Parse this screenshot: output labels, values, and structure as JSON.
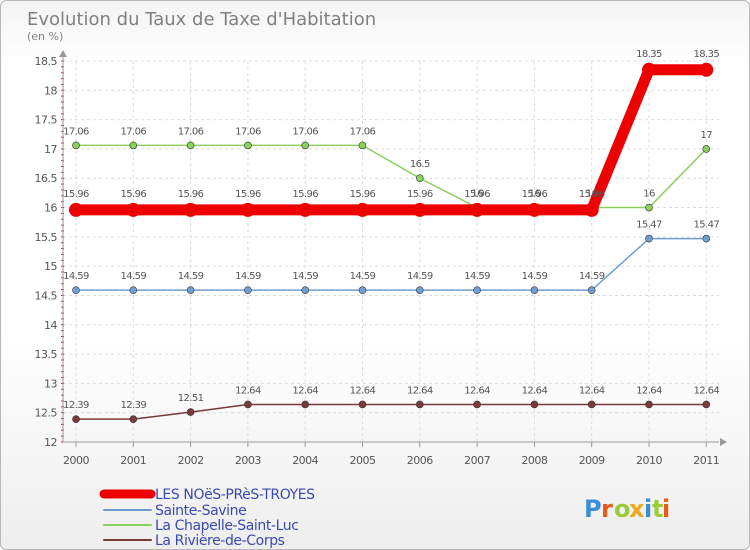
{
  "chart_data": {
    "type": "line",
    "title": "Evolution du Taux de Taxe d'Habitation",
    "subtitle": "(en %)",
    "x": [
      "2000",
      "2001",
      "2002",
      "2003",
      "2004",
      "2005",
      "2006",
      "2007",
      "2008",
      "2009",
      "2010",
      "2011"
    ],
    "ylim": [
      12,
      18.5
    ],
    "yticks": [
      "12",
      "12.5",
      "13",
      "13.5",
      "14",
      "14.5",
      "15",
      "15.5",
      "16",
      "16.5",
      "17",
      "17.5",
      "18",
      "18.5"
    ],
    "grid": true,
    "legend_position": "bottom-left",
    "series": [
      {
        "name": "LES NOëS-PRèS-TROYES",
        "color": "#ee0000",
        "values": [
          15.96,
          15.96,
          15.96,
          15.96,
          15.96,
          15.96,
          15.96,
          15.96,
          15.96,
          15.96,
          18.35,
          18.35
        ],
        "labels": [
          "15.96",
          "15.96",
          "15.96",
          "15.96",
          "15.96",
          "15.96",
          "15.96",
          "15.96",
          "15.96",
          "15.96",
          "18.35",
          "18.35"
        ]
      },
      {
        "name": "Sainte-Savine",
        "color": "#6f9fcf",
        "values": [
          14.59,
          14.59,
          14.59,
          14.59,
          14.59,
          14.59,
          14.59,
          14.59,
          14.59,
          14.59,
          15.47,
          15.47
        ],
        "labels": [
          "14.59",
          "14.59",
          "14.59",
          "14.59",
          "14.59",
          "14.59",
          "14.59",
          "14.59",
          "14.59",
          "14.59",
          "15.47",
          "15.47"
        ]
      },
      {
        "name": "La Chapelle-Saint-Luc",
        "color": "#8cd060",
        "values": [
          17.06,
          17.06,
          17.06,
          17.06,
          17.06,
          17.06,
          16.5,
          16,
          16,
          16,
          16,
          17
        ],
        "labels": [
          "17.06",
          "17.06",
          "17.06",
          "17.06",
          "17.06",
          "17.06",
          "16.5",
          "16",
          "16",
          "16",
          "16",
          "17"
        ]
      },
      {
        "name": "La Rivière-de-Corps",
        "color": "#7a3a3a",
        "values": [
          12.39,
          12.39,
          12.51,
          12.64,
          12.64,
          12.64,
          12.64,
          12.64,
          12.64,
          12.64,
          12.64,
          12.64
        ],
        "labels": [
          "12.39",
          "12.39",
          "12.51",
          "12.64",
          "12.64",
          "12.64",
          "12.64",
          "12.64",
          "12.64",
          "12.64",
          "12.64",
          "12.64"
        ]
      }
    ]
  },
  "brand": {
    "letters": [
      "P",
      "r",
      "o",
      "x",
      "i",
      "t",
      "i"
    ],
    "colors": [
      "#3a8ed6",
      "#e85a1c",
      "#9ccc3a",
      "#f2a81d",
      "#3a8ed6",
      "#9ccc3a",
      "#e85a1c"
    ]
  }
}
